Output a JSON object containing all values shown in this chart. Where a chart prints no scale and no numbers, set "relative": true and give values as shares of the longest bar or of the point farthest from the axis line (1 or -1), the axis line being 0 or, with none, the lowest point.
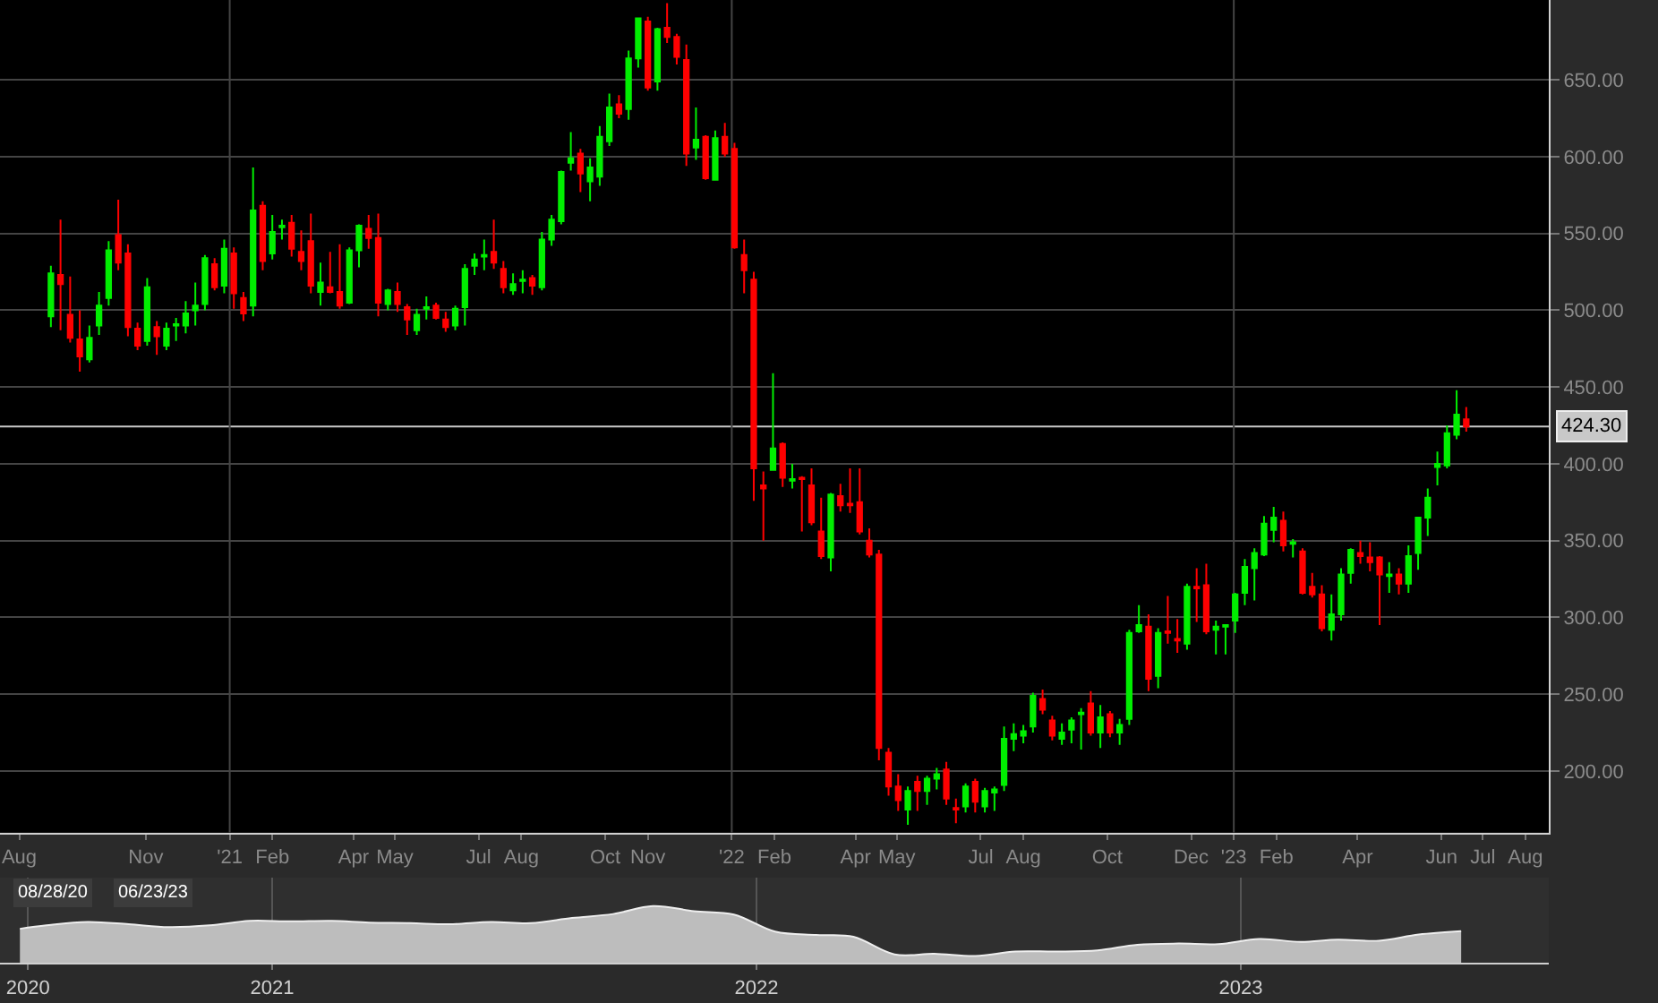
{
  "chart_data": [
    {
      "type": "candlestick",
      "x": [
        "2020-08-24",
        "2020-08-31",
        "2020-09-07",
        "2020-09-14",
        "2020-09-21",
        "2020-09-28",
        "2020-10-05",
        "2020-10-12",
        "2020-10-19",
        "2020-10-26",
        "2020-11-02",
        "2020-11-09",
        "2020-11-16",
        "2020-11-23",
        "2020-11-30",
        "2020-12-07",
        "2020-12-14",
        "2020-12-21",
        "2020-12-28",
        "2021-01-04",
        "2021-01-11",
        "2021-01-18",
        "2021-01-25",
        "2021-02-01",
        "2021-02-08",
        "2021-02-15",
        "2021-02-22",
        "2021-03-01",
        "2021-03-08",
        "2021-03-15",
        "2021-03-22",
        "2021-03-29",
        "2021-04-05",
        "2021-04-12",
        "2021-04-19",
        "2021-04-26",
        "2021-05-03",
        "2021-05-10",
        "2021-05-17",
        "2021-05-24",
        "2021-05-31",
        "2021-06-07",
        "2021-06-14",
        "2021-06-21",
        "2021-06-28",
        "2021-07-05",
        "2021-07-12",
        "2021-07-19",
        "2021-07-26",
        "2021-08-02",
        "2021-08-09",
        "2021-08-16",
        "2021-08-23",
        "2021-08-30",
        "2021-09-06",
        "2021-09-13",
        "2021-09-20",
        "2021-09-27",
        "2021-10-04",
        "2021-10-11",
        "2021-10-18",
        "2021-10-25",
        "2021-11-01",
        "2021-11-08",
        "2021-11-15",
        "2021-11-22",
        "2021-11-29",
        "2021-12-06",
        "2021-12-13",
        "2021-12-20",
        "2021-12-27",
        "2022-01-03",
        "2022-01-10",
        "2022-01-17",
        "2022-01-24",
        "2022-01-31",
        "2022-02-07",
        "2022-02-14",
        "2022-02-21",
        "2022-02-28",
        "2022-03-07",
        "2022-03-14",
        "2022-03-21",
        "2022-03-28",
        "2022-04-04",
        "2022-04-11",
        "2022-04-18",
        "2022-04-25",
        "2022-05-02",
        "2022-05-09",
        "2022-05-16",
        "2022-05-23",
        "2022-05-30",
        "2022-06-06",
        "2022-06-13",
        "2022-06-20",
        "2022-06-27",
        "2022-07-04",
        "2022-07-11",
        "2022-07-18",
        "2022-07-25",
        "2022-08-01",
        "2022-08-08",
        "2022-08-15",
        "2022-08-22",
        "2022-08-29",
        "2022-09-05",
        "2022-09-12",
        "2022-09-19",
        "2022-09-26",
        "2022-10-03",
        "2022-10-10",
        "2022-10-17",
        "2022-10-24",
        "2022-10-31",
        "2022-11-07",
        "2022-11-14",
        "2022-11-21",
        "2022-11-28",
        "2022-12-05",
        "2022-12-12",
        "2022-12-19",
        "2022-12-26",
        "2023-01-02",
        "2023-01-09",
        "2023-01-16",
        "2023-01-23",
        "2023-01-30",
        "2023-02-06",
        "2023-02-13",
        "2023-02-20",
        "2023-02-27",
        "2023-03-06",
        "2023-03-13",
        "2023-03-20",
        "2023-03-27",
        "2023-04-03",
        "2023-04-10",
        "2023-04-17",
        "2023-04-24",
        "2023-05-01",
        "2023-05-08",
        "2023-05-15",
        "2023-05-22",
        "2023-05-29",
        "2023-06-05",
        "2023-06-12",
        "2023-06-19"
      ],
      "ohlc": [
        [
          496,
          529,
          489,
          524
        ],
        [
          523,
          559,
          487,
          517
        ],
        [
          497,
          522,
          479,
          482
        ],
        [
          481,
          500,
          460,
          470
        ],
        [
          468,
          490,
          466,
          482
        ],
        [
          490,
          512,
          484,
          503
        ],
        [
          508,
          545,
          503,
          539
        ],
        [
          549,
          572,
          526,
          531
        ],
        [
          537,
          543,
          483,
          489
        ],
        [
          488,
          492,
          474,
          477
        ],
        [
          480,
          521,
          477,
          515
        ],
        [
          489,
          493,
          471,
          483
        ],
        [
          477,
          492,
          474,
          488
        ],
        [
          490,
          495,
          480,
          491
        ],
        [
          490,
          506,
          485,
          498
        ],
        [
          500,
          518,
          490,
          503
        ],
        [
          504,
          536,
          500,
          534
        ],
        [
          530,
          534,
          513,
          515
        ],
        [
          516,
          546,
          511,
          540
        ],
        [
          537,
          541,
          501,
          511
        ],
        [
          508,
          512,
          493,
          498
        ],
        [
          503,
          593,
          496,
          565
        ],
        [
          568,
          571,
          526,
          532
        ],
        [
          537,
          562,
          533,
          551
        ],
        [
          554,
          559,
          546,
          555
        ],
        [
          557,
          562,
          535,
          540
        ],
        [
          538,
          552,
          526,
          532
        ],
        [
          545,
          563,
          511,
          516
        ],
        [
          512,
          531,
          503,
          518
        ],
        [
          515,
          538,
          511,
          512
        ],
        [
          512,
          543,
          501,
          503
        ],
        [
          505,
          541,
          504,
          539
        ],
        [
          539,
          556,
          528,
          555
        ],
        [
          553,
          562,
          540,
          547
        ],
        [
          547,
          563,
          496,
          505
        ],
        [
          504,
          514,
          500,
          513
        ],
        [
          512,
          518,
          499,
          504
        ],
        [
          502,
          504,
          484,
          494
        ],
        [
          487,
          501,
          484,
          497
        ],
        [
          501,
          509,
          494,
          502
        ],
        [
          503,
          505,
          494,
          495
        ],
        [
          494,
          499,
          486,
          489
        ],
        [
          490,
          503,
          487,
          501
        ],
        [
          502,
          530,
          490,
          527
        ],
        [
          529,
          537,
          523,
          533
        ],
        [
          535,
          546,
          526,
          536
        ],
        [
          538,
          559,
          527,
          531
        ],
        [
          527,
          532,
          511,
          515
        ],
        [
          513,
          524,
          510,
          517
        ],
        [
          519,
          526,
          511,
          520
        ],
        [
          521,
          523,
          510,
          516
        ],
        [
          515,
          551,
          513,
          546
        ],
        [
          546,
          562,
          542,
          559
        ],
        [
          558,
          591,
          556,
          590
        ],
        [
          596,
          616,
          591,
          599
        ],
        [
          602,
          605,
          577,
          589
        ],
        [
          584,
          599,
          571,
          593
        ],
        [
          587,
          620,
          581,
          613
        ],
        [
          610,
          641,
          607,
          632
        ],
        [
          634,
          640,
          625,
          628
        ],
        [
          631,
          669,
          624,
          664
        ],
        [
          664,
          690,
          658,
          690
        ],
        [
          688,
          691,
          643,
          645
        ],
        [
          649,
          684,
          643,
          683
        ],
        [
          684,
          700,
          674,
          678
        ],
        [
          678,
          680,
          660,
          665
        ],
        [
          663,
          673,
          594,
          602
        ],
        [
          606,
          632,
          598,
          611
        ],
        [
          613,
          614,
          585,
          586
        ],
        [
          585,
          617,
          585,
          612
        ],
        [
          613,
          622,
          600,
          602
        ],
        [
          605,
          609,
          540,
          541
        ],
        [
          536,
          546,
          511,
          526
        ],
        [
          520,
          525,
          376,
          397
        ],
        [
          386,
          395,
          350,
          384
        ],
        [
          396,
          459,
          396,
          410
        ],
        [
          413,
          414,
          385,
          391
        ],
        [
          389,
          400,
          384,
          390
        ],
        [
          391,
          392,
          356,
          390
        ],
        [
          386,
          397,
          360,
          362
        ],
        [
          356,
          378,
          338,
          340
        ],
        [
          339,
          381,
          330,
          380
        ],
        [
          379,
          387,
          369,
          373
        ],
        [
          374,
          397,
          368,
          373
        ],
        [
          375,
          397,
          354,
          356
        ],
        [
          350,
          358,
          339,
          341
        ],
        [
          341,
          344,
          207,
          215
        ],
        [
          212,
          215,
          184,
          190
        ],
        [
          190,
          198,
          174,
          181
        ],
        [
          175,
          190,
          165,
          187
        ],
        [
          193,
          197,
          174,
          187
        ],
        [
          187,
          197,
          178,
          195
        ],
        [
          195,
          202,
          188,
          198
        ],
        [
          201,
          206,
          178,
          182
        ],
        [
          176,
          182,
          166,
          175
        ],
        [
          177,
          192,
          173,
          190
        ],
        [
          193,
          195,
          173,
          180
        ],
        [
          177,
          189,
          173,
          187
        ],
        [
          186,
          190,
          174,
          188
        ],
        [
          191,
          229,
          187,
          221
        ],
        [
          221,
          231,
          213,
          224
        ],
        [
          223,
          230,
          218,
          226
        ],
        [
          229,
          251,
          225,
          249
        ],
        [
          247,
          253,
          237,
          240
        ],
        [
          233,
          236,
          220,
          223
        ],
        [
          221,
          231,
          217,
          225
        ],
        [
          227,
          235,
          218,
          233
        ],
        [
          237,
          241,
          214,
          238
        ],
        [
          244,
          252,
          223,
          225
        ],
        [
          225,
          243,
          215,
          235
        ],
        [
          237,
          239,
          222,
          225
        ],
        [
          225,
          234,
          217,
          230
        ],
        [
          234,
          292,
          230,
          290
        ],
        [
          291,
          308,
          290,
          295
        ],
        [
          294,
          302,
          252,
          260
        ],
        [
          262,
          293,
          254,
          290
        ],
        [
          291,
          314,
          283,
          290
        ],
        [
          286,
          299,
          277,
          285
        ],
        [
          283,
          322,
          279,
          320
        ],
        [
          320,
          332,
          297,
          319
        ],
        [
          321,
          335,
          289,
          291
        ],
        [
          292,
          298,
          276,
          294
        ],
        [
          294,
          295,
          276,
          295
        ],
        [
          298,
          316,
          290,
          315
        ],
        [
          316,
          338,
          308,
          333
        ],
        [
          332,
          345,
          311,
          342
        ],
        [
          341,
          366,
          340,
          361
        ],
        [
          357,
          372,
          349,
          365
        ],
        [
          363,
          369,
          343,
          347
        ],
        [
          348,
          351,
          339,
          349
        ],
        [
          343,
          345,
          315,
          316
        ],
        [
          320,
          329,
          313,
          315
        ],
        [
          315,
          321,
          291,
          293
        ],
        [
          292,
          315,
          285,
          302
        ],
        [
          302,
          332,
          298,
          328
        ],
        [
          329,
          345,
          322,
          344
        ],
        [
          342,
          350,
          335,
          340
        ],
        [
          339,
          349,
          330,
          336
        ],
        [
          339,
          340,
          295,
          328
        ],
        [
          327,
          336,
          316,
          328
        ],
        [
          328,
          332,
          315,
          322
        ],
        [
          322,
          347,
          316,
          340
        ],
        [
          342,
          365,
          331,
          365
        ],
        [
          365,
          384,
          353,
          378
        ],
        [
          398,
          408,
          386,
          400
        ],
        [
          399,
          425,
          397,
          420
        ],
        [
          419,
          448,
          416,
          432
        ],
        [
          429,
          437,
          421,
          424.3
        ]
      ],
      "colors": [
        "#00ee00",
        "#ff0000",
        "#ff0000",
        "#ff0000",
        "#00ee00",
        "#00ee00",
        "#00ee00",
        "#ff0000",
        "#ff0000",
        "#ff0000",
        "#00ee00",
        "#ff0000",
        "#00ee00",
        "#00ee00",
        "#00ee00",
        "#00ee00",
        "#00ee00",
        "#ff0000",
        "#00ee00",
        "#ff0000",
        "#ff0000",
        "#00ee00",
        "#ff0000",
        "#00ee00",
        "#00ee00",
        "#ff0000",
        "#ff0000",
        "#ff0000",
        "#00ee00",
        "#ff0000",
        "#ff0000",
        "#00ee00",
        "#00ee00",
        "#ff0000",
        "#ff0000",
        "#00ee00",
        "#ff0000",
        "#ff0000",
        "#00ee00",
        "#00ee00",
        "#ff0000",
        "#ff0000",
        "#00ee00",
        "#00ee00",
        "#00ee00",
        "#00ee00",
        "#ff0000",
        "#ff0000",
        "#00ee00",
        "#00ee00",
        "#ff0000",
        "#00ee00",
        "#00ee00",
        "#00ee00",
        "#00ee00",
        "#ff0000",
        "#00ee00",
        "#00ee00",
        "#00ee00",
        "#ff0000",
        "#00ee00",
        "#00ee00",
        "#ff0000",
        "#00ee00",
        "#ff0000",
        "#ff0000",
        "#ff0000",
        "#00ee00",
        "#ff0000",
        "#00ee00",
        "#ff0000",
        "#ff0000",
        "#ff0000",
        "#ff0000",
        "#ff0000",
        "#00ee00",
        "#ff0000",
        "#00ee00",
        "#ff0000",
        "#ff0000",
        "#ff0000",
        "#00ee00",
        "#ff0000",
        "#ff0000",
        "#ff0000",
        "#ff0000",
        "#ff0000",
        "#ff0000",
        "#ff0000",
        "#00ee00",
        "#ff0000",
        "#00ee00",
        "#00ee00",
        "#ff0000",
        "#ff0000",
        "#00ee00",
        "#ff0000",
        "#00ee00",
        "#00ee00",
        "#00ee00",
        "#00ee00",
        "#00ee00",
        "#00ee00",
        "#ff0000",
        "#ff0000",
        "#00ee00",
        "#00ee00",
        "#00ee00",
        "#ff0000",
        "#00ee00",
        "#ff0000",
        "#00ee00",
        "#00ee00",
        "#00ee00",
        "#ff0000",
        "#00ee00",
        "#ff0000",
        "#ff0000",
        "#00ee00",
        "#ff0000",
        "#ff0000",
        "#00ee00",
        "#00ee00",
        "#00ee00",
        "#00ee00",
        "#00ee00",
        "#00ee00",
        "#00ee00",
        "#ff0000",
        "#00ee00",
        "#ff0000",
        "#ff0000",
        "#ff0000",
        "#00ee00",
        "#00ee00",
        "#00ee00",
        "#ff0000",
        "#ff0000",
        "#ff0000",
        "#00ee00",
        "#ff0000",
        "#00ee00",
        "#00ee00",
        "#00ee00",
        "#00ee00",
        "#00ee00",
        "#00ee00",
        "#ff0000"
      ],
      "xlim": [
        "2020-07-18",
        "2023-08-18"
      ],
      "xticks": [
        {
          "value": "2020-08-01",
          "label": "Aug"
        },
        {
          "value": "2020-11-01",
          "label": "Nov"
        },
        {
          "value": "2021-01-01",
          "label": "'21"
        },
        {
          "value": "2021-02-01",
          "label": "Feb"
        },
        {
          "value": "2021-04-01",
          "label": "Apr"
        },
        {
          "value": "2021-05-01",
          "label": "May"
        },
        {
          "value": "2021-07-01",
          "label": "Jul"
        },
        {
          "value": "2021-08-01",
          "label": "Aug"
        },
        {
          "value": "2021-10-01",
          "label": "Oct"
        },
        {
          "value": "2021-11-01",
          "label": "Nov"
        },
        {
          "value": "2022-01-01",
          "label": "'22"
        },
        {
          "value": "2022-02-01",
          "label": "Feb"
        },
        {
          "value": "2022-04-01",
          "label": "Apr"
        },
        {
          "value": "2022-05-01",
          "label": "May"
        },
        {
          "value": "2022-07-01",
          "label": "Jul"
        },
        {
          "value": "2022-08-01",
          "label": "Aug"
        },
        {
          "value": "2022-10-01",
          "label": "Oct"
        },
        {
          "value": "2022-12-01",
          "label": "Dec"
        },
        {
          "value": "2023-01-01",
          "label": "'23"
        },
        {
          "value": "2023-02-01",
          "label": "Feb"
        },
        {
          "value": "2023-04-01",
          "label": "Apr"
        },
        {
          "value": "2023-06-01",
          "label": "Jun"
        },
        {
          "value": "2023-07-01",
          "label": "Jul"
        },
        {
          "value": "2023-08-01",
          "label": "Aug"
        }
      ],
      "ylim": [
        160,
        702
      ],
      "yticks": [
        {
          "value": 200,
          "label": "200.00"
        },
        {
          "value": 250,
          "label": "250.00"
        },
        {
          "value": 300,
          "label": "300.00"
        },
        {
          "value": 350,
          "label": "350.00"
        },
        {
          "value": 400,
          "label": "400.00"
        },
        {
          "value": 450,
          "label": "450.00"
        },
        {
          "value": 500,
          "label": "500.00"
        },
        {
          "value": 550,
          "label": "550.00"
        },
        {
          "value": 600,
          "label": "600.00"
        },
        {
          "value": 650,
          "label": "650.00"
        }
      ],
      "grid": "y",
      "ref_lines": [
        {
          "axis": "y",
          "value": 424.3,
          "label": "424.30",
          "color": "#c8c8c8"
        },
        {
          "axis": "x",
          "value": "2021-01-01",
          "color": "#444444"
        },
        {
          "axis": "x",
          "value": "2022-01-01",
          "color": "#444444"
        },
        {
          "axis": "x",
          "value": "2023-01-01",
          "color": "#444444"
        }
      ]
    },
    {
      "type": "area",
      "relative": true,
      "x": [
        "2020-06-25",
        "2020-07-15",
        "2020-08-15",
        "2020-09-15",
        "2020-10-15",
        "2020-11-15",
        "2020-12-15",
        "2021-01-15",
        "2021-02-15",
        "2021-03-15",
        "2021-04-15",
        "2021-05-15",
        "2021-06-15",
        "2021-07-15",
        "2021-08-15",
        "2021-09-15",
        "2021-10-15",
        "2021-11-15",
        "2021-12-15",
        "2022-01-15",
        "2022-02-15",
        "2022-03-15",
        "2022-04-15",
        "2022-05-15",
        "2022-06-15",
        "2022-07-15",
        "2022-08-15",
        "2022-09-15",
        "2022-10-15",
        "2022-11-15",
        "2022-12-15",
        "2023-01-15",
        "2023-02-15",
        "2023-03-15",
        "2023-04-15",
        "2023-05-15",
        "2023-06-16"
      ],
      "values": [
        0.6,
        0.66,
        0.72,
        0.68,
        0.63,
        0.66,
        0.74,
        0.73,
        0.74,
        0.71,
        0.7,
        0.68,
        0.72,
        0.7,
        0.79,
        0.86,
        1,
        0.91,
        0.85,
        0.55,
        0.49,
        0.46,
        0.15,
        0.16,
        0.12,
        0.2,
        0.2,
        0.22,
        0.32,
        0.34,
        0.33,
        0.42,
        0.37,
        0.41,
        0.39,
        0.5,
        0.56
      ],
      "color": "#bdbdbd",
      "xlim": [
        "2020-06-10",
        "2023-08-21"
      ],
      "xticks": [
        {
          "value": "2020-07-01",
          "label": "2020"
        },
        {
          "value": "2021-01-01",
          "label": "2021"
        },
        {
          "value": "2022-01-01",
          "label": "2022"
        },
        {
          "value": "2023-01-01",
          "label": "2023"
        }
      ],
      "grid": "x",
      "annotations": [
        "08/28/20",
        "06/23/23"
      ]
    }
  ]
}
